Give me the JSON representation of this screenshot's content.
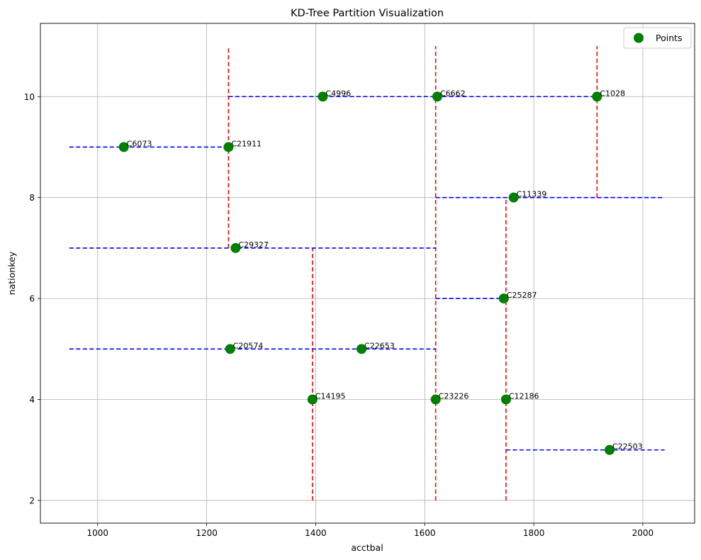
{
  "chart_data": {
    "type": "scatter",
    "title": "KD-Tree Partition Visualization",
    "xlabel": "acctbal",
    "ylabel": "nationkey",
    "xlim": [
      895,
      2095
    ],
    "ylim": [
      1.55,
      11.45
    ],
    "xticks": [
      1000,
      1200,
      1400,
      1600,
      1800,
      2000
    ],
    "yticks": [
      2,
      4,
      6,
      8,
      10
    ],
    "grid": true,
    "legend": {
      "position": "top-right",
      "entries": [
        "Points"
      ]
    },
    "colors": {
      "points": "#008000",
      "vertical_split": "#ff0000",
      "horizontal_split": "#0000ff",
      "grid": "#b0b0b0"
    },
    "series": [
      {
        "name": "Points",
        "points": [
          {
            "label": "C6073",
            "x": 1048,
            "y": 9
          },
          {
            "label": "C21911",
            "x": 1240,
            "y": 9
          },
          {
            "label": "C4996",
            "x": 1413,
            "y": 10
          },
          {
            "label": "C6662",
            "x": 1623,
            "y": 10
          },
          {
            "label": "C1028",
            "x": 1916,
            "y": 10
          },
          {
            "label": "C11339",
            "x": 1763,
            "y": 8
          },
          {
            "label": "C29327",
            "x": 1253,
            "y": 7
          },
          {
            "label": "C25287",
            "x": 1745,
            "y": 6
          },
          {
            "label": "C20574",
            "x": 1243,
            "y": 5
          },
          {
            "label": "C22653",
            "x": 1484,
            "y": 5
          },
          {
            "label": "C14195",
            "x": 1394,
            "y": 4
          },
          {
            "label": "C23226",
            "x": 1620,
            "y": 4
          },
          {
            "label": "C12186",
            "x": 1749,
            "y": 4
          },
          {
            "label": "C22503",
            "x": 1939,
            "y": 3
          }
        ]
      }
    ],
    "vertical_splits": [
      {
        "x": 1620,
        "y1": 2,
        "y2": 11
      },
      {
        "x": 1240,
        "y1": 7,
        "y2": 11
      },
      {
        "x": 1394,
        "y1": 2,
        "y2": 7
      },
      {
        "x": 1916,
        "y1": 8,
        "y2": 11
      },
      {
        "x": 1749,
        "y1": 2,
        "y2": 8
      }
    ],
    "horizontal_splits": [
      {
        "y": 7,
        "x1": 948,
        "x2": 1620
      },
      {
        "y": 9,
        "x1": 948,
        "x2": 1240
      },
      {
        "y": 10,
        "x1": 1240,
        "x2": 1620
      },
      {
        "y": 5,
        "x1": 948,
        "x2": 1620
      },
      {
        "y": 10,
        "x1": 1620,
        "x2": 1916
      },
      {
        "y": 8,
        "x1": 1620,
        "x2": 2040
      },
      {
        "y": 6,
        "x1": 1620,
        "x2": 1749
      },
      {
        "y": 3,
        "x1": 1749,
        "x2": 2040
      }
    ]
  }
}
